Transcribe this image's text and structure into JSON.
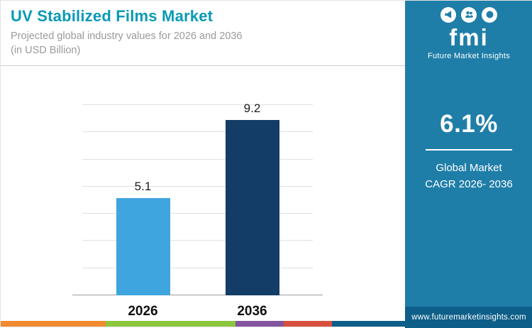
{
  "header": {
    "title": "UV Stabilized Films Market",
    "subtitle_line1": "Projected global industry values for 2026 and 2036",
    "subtitle_line2": "(in USD Billion)",
    "brand": {
      "logo_text": "fmi",
      "logo_name": "Future Market Insights",
      "icons": [
        "megaphone-icon",
        "people-icon",
        "globe-icon"
      ]
    }
  },
  "chart_data": {
    "type": "bar",
    "categories": [
      "2026",
      "2036"
    ],
    "values": [
      5.1,
      9.2
    ],
    "title": "UV Stabilized Films Market",
    "xlabel": "",
    "ylabel": "",
    "ylim": [
      0,
      10
    ],
    "grid": true,
    "legend": "none",
    "bar_colors": [
      "#3fa5de",
      "#133c66"
    ]
  },
  "sidebar": {
    "cagr_value": "6.1%",
    "cagr_label_line1": "Global Market",
    "cagr_label_line2": "CAGR 2026- 2036",
    "website": "www.futuremarketinsights.com"
  },
  "colors": {
    "title_teal": "#0899b6",
    "panel_blue": "#1f7ea8",
    "website_bar_blue": "#0d5e88",
    "bar_2026": "#3fa5de",
    "bar_2036": "#133c66",
    "gridline": "#e0e0e0"
  },
  "footer": {
    "strip_segments": [
      {
        "color": "#f28a30",
        "width_pct": 26
      },
      {
        "color": "#8cc63e",
        "width_pct": 32
      },
      {
        "color": "#83549f",
        "width_pct": 12
      },
      {
        "color": "#d94f3d",
        "width_pct": 12
      },
      {
        "color": "#0d5e88",
        "width_pct": 18
      }
    ]
  }
}
